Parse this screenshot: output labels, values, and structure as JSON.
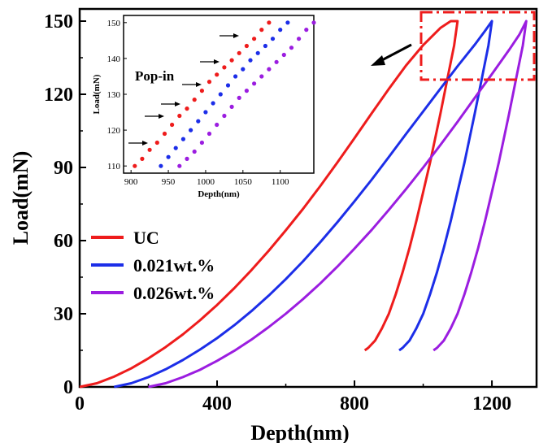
{
  "chart_data": [
    {
      "type": "line",
      "title": "",
      "xlabel": "Depth(nm)",
      "ylabel": "Load(mN)",
      "xlim": [
        0,
        1330
      ],
      "ylim": [
        0,
        155
      ],
      "xticks": [
        0,
        400,
        800,
        1200
      ],
      "yticks": [
        0,
        30,
        60,
        90,
        120,
        150
      ],
      "legend_position": "left",
      "grid": false,
      "series": [
        {
          "name": "UC",
          "color": "#ee1c1c",
          "x": [
            0,
            50,
            100,
            150,
            200,
            250,
            300,
            350,
            400,
            450,
            500,
            550,
            600,
            650,
            700,
            750,
            800,
            850,
            900,
            950,
            1000,
            1050,
            1080,
            1100,
            1090,
            1070,
            1050,
            1020,
            1000,
            980,
            960,
            940,
            920,
            900,
            880,
            860,
            840,
            830
          ],
          "y": [
            0,
            1.5,
            4.2,
            7.6,
            11.7,
            16.3,
            21.5,
            27.3,
            33.6,
            40.5,
            47.9,
            55.8,
            64.2,
            73,
            82.3,
            92,
            102,
            112.2,
            122.2,
            131.8,
            140.2,
            147.2,
            150,
            150,
            140,
            126,
            112,
            92,
            80,
            68,
            57,
            47,
            38,
            30,
            24,
            19,
            16,
            15
          ]
        },
        {
          "name": "0.021wt.%",
          "color": "#1c2ee8",
          "x": [
            100,
            150,
            200,
            250,
            300,
            350,
            400,
            450,
            500,
            550,
            600,
            650,
            700,
            750,
            800,
            850,
            900,
            950,
            1000,
            1050,
            1100,
            1150,
            1180,
            1200,
            1190,
            1170,
            1150,
            1120,
            1100,
            1080,
            1060,
            1040,
            1020,
            1000,
            980,
            960,
            940,
            930
          ],
          "y": [
            0,
            1.5,
            4,
            7.2,
            11,
            15.3,
            20,
            25.3,
            31.1,
            37.4,
            44.2,
            51.5,
            59.3,
            67.5,
            76.1,
            85,
            94.3,
            103.7,
            113,
            122.3,
            131.5,
            140.3,
            146,
            150,
            140,
            126,
            112,
            92,
            80,
            68,
            57,
            47,
            38,
            30,
            24,
            19,
            16,
            15
          ]
        },
        {
          "name": "0.026wt.%",
          "color": "#9b1de0",
          "x": [
            200,
            250,
            300,
            350,
            400,
            450,
            500,
            550,
            600,
            650,
            700,
            750,
            800,
            850,
            900,
            950,
            1000,
            1050,
            1100,
            1150,
            1200,
            1250,
            1280,
            1300,
            1290,
            1270,
            1250,
            1220,
            1200,
            1180,
            1160,
            1140,
            1120,
            1100,
            1080,
            1060,
            1040,
            1030
          ],
          "y": [
            0,
            1.5,
            4,
            7,
            10.7,
            14.8,
            19.4,
            24.5,
            30,
            36,
            42.4,
            49.3,
            56.7,
            64.4,
            72.6,
            81.1,
            90,
            99.2,
            108.7,
            118.5,
            128.3,
            138.2,
            144.5,
            150,
            140,
            126,
            112,
            92,
            80,
            68,
            57,
            47,
            38,
            30,
            24,
            19,
            16,
            15
          ]
        }
      ]
    },
    {
      "type": "scatter",
      "title": "Pop-in",
      "xlabel": "Depth(nm)",
      "ylabel": "Load(mN)",
      "xlim": [
        890,
        1145
      ],
      "ylim": [
        108,
        152
      ],
      "xticks": [
        900,
        950,
        1000,
        1050,
        1100
      ],
      "yticks": [
        110,
        120,
        130,
        140,
        150
      ],
      "series": [
        {
          "name": "UC",
          "color": "#ee1c1c",
          "x": [
            905,
            915,
            925,
            935,
            945,
            955,
            965,
            975,
            985,
            995,
            1005,
            1015,
            1025,
            1035,
            1045,
            1055,
            1065,
            1075,
            1085
          ],
          "y": [
            110,
            112,
            114.5,
            116.5,
            119,
            121.5,
            124,
            126,
            128.5,
            131,
            133.5,
            135.5,
            137.5,
            139.5,
            141.5,
            143.5,
            145.5,
            148,
            150
          ]
        },
        {
          "name": "0.021wt.%",
          "color": "#1c2ee8",
          "x": [
            940,
            950,
            960,
            970,
            980,
            990,
            1000,
            1010,
            1020,
            1030,
            1040,
            1050,
            1060,
            1070,
            1080,
            1090,
            1100,
            1110
          ],
          "y": [
            110,
            112.5,
            115,
            117.5,
            120,
            122.5,
            125,
            127.5,
            130,
            132.5,
            135,
            137,
            139.5,
            141.5,
            143.5,
            145.5,
            148,
            150
          ]
        },
        {
          "name": "0.026wt.%",
          "color": "#9b1de0",
          "x": [
            965,
            975,
            985,
            995,
            1005,
            1015,
            1025,
            1035,
            1045,
            1055,
            1065,
            1075,
            1085,
            1095,
            1105,
            1115,
            1125,
            1135,
            1145
          ],
          "y": [
            110,
            112,
            114,
            116.5,
            119,
            121.5,
            124,
            126.5,
            129,
            131,
            133,
            135,
            137,
            139,
            141,
            143,
            145.5,
            148,
            150
          ]
        }
      ]
    }
  ]
}
